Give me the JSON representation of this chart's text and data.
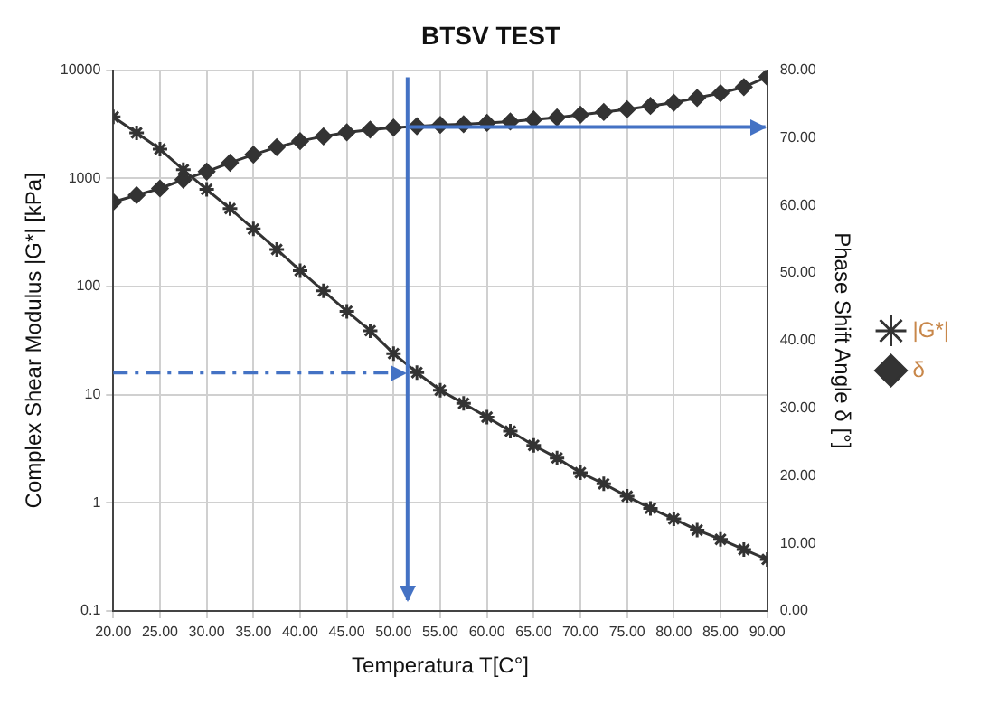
{
  "chart_data": {
    "type": "line",
    "title": "BTSV TEST",
    "xlabel": "Temperatura T[C°]",
    "ylabel": "Complex Shear Modulus |G*| [kPa]",
    "y2label": "Phase Shift Angle δ [°]",
    "x": [
      20,
      22.5,
      25,
      27.5,
      30,
      32.5,
      35,
      37.5,
      40,
      42.5,
      45,
      47.5,
      50,
      52.5,
      55,
      57.5,
      60,
      62.5,
      65,
      67.5,
      70,
      72.5,
      75,
      77.5,
      80,
      82.5,
      85,
      87.5,
      90
    ],
    "series": [
      {
        "name": "|G*|",
        "color": "#333333",
        "marker": "cross",
        "values": [
          3700,
          2630,
          1860,
          1200,
          790,
          525,
          340,
          220,
          140,
          91,
          59,
          39,
          24,
          16,
          11,
          8.3,
          6.2,
          4.6,
          3.4,
          2.6,
          1.9,
          1.5,
          1.15,
          0.89,
          0.71,
          0.56,
          0.46,
          0.37,
          0.3
        ]
      },
      {
        "name": "δ",
        "color": "#333333",
        "marker": "diamond",
        "axis": "y2",
        "values": [
          60.5,
          61.5,
          62.5,
          63.8,
          65,
          66.3,
          67.5,
          68.6,
          69.5,
          70.2,
          70.8,
          71.2,
          71.5,
          71.7,
          71.9,
          72,
          72.2,
          72.4,
          72.7,
          73,
          73.4,
          73.8,
          74.2,
          74.7,
          75.2,
          75.9,
          76.6,
          77.5,
          79
        ]
      }
    ],
    "log": "y",
    "xlim": [
      20,
      90
    ],
    "xticks": [
      {
        "value": 20,
        "label": "20.00"
      },
      {
        "value": 25,
        "label": "25.00"
      },
      {
        "value": 30,
        "label": "30.00"
      },
      {
        "value": 35,
        "label": "35.00"
      },
      {
        "value": 40,
        "label": "40.00"
      },
      {
        "value": 45,
        "label": "45.00"
      },
      {
        "value": 50,
        "label": "50.00"
      },
      {
        "value": 55,
        "label": "55.00"
      },
      {
        "value": 60,
        "label": "60.00"
      },
      {
        "value": 65,
        "label": "65.00"
      },
      {
        "value": 70,
        "label": "70.00"
      },
      {
        "value": 75,
        "label": "75.00"
      },
      {
        "value": 80,
        "label": "80.00"
      },
      {
        "value": 85,
        "label": "85.00"
      },
      {
        "value": 90,
        "label": "90.00"
      }
    ],
    "ylim": [
      0.1,
      10000
    ],
    "yticks": [
      0.1,
      1,
      10,
      100,
      1000,
      10000
    ],
    "y2lim": [
      0,
      80
    ],
    "y2ticks": [
      {
        "value": 0,
        "label": "0.00"
      },
      {
        "value": 10,
        "label": "10.00"
      },
      {
        "value": 20,
        "label": "20.00"
      },
      {
        "value": 30,
        "label": "30.00"
      },
      {
        "value": 40,
        "label": "40.00"
      },
      {
        "value": 50,
        "label": "50.00"
      },
      {
        "value": 60,
        "label": "60.00"
      },
      {
        "value": 70,
        "label": "70.00"
      },
      {
        "value": 80,
        "label": "80.00"
      }
    ],
    "ref_lines": [
      {
        "axis": "x",
        "value": 51.5,
        "color": "#4472c4"
      },
      {
        "axis": "y",
        "value": 16,
        "color": "#4472c4",
        "line_style": "dashed"
      },
      {
        "axis": "y2",
        "value": 71.6,
        "color": "#4472c4"
      }
    ],
    "grid": true,
    "legend": "right"
  }
}
